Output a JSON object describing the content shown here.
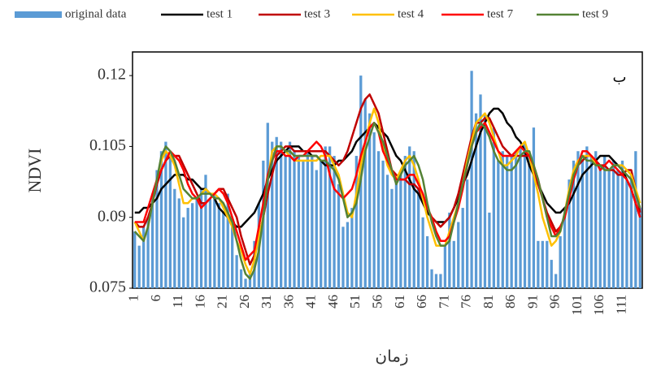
{
  "chart_data": {
    "type": "bar_line",
    "y_label": "NDVI",
    "x_label": "زمان",
    "annotation": "ب",
    "legend": "top",
    "grid": false,
    "categories": [
      "1",
      null,
      null,
      null,
      null,
      "6",
      null,
      null,
      null,
      null,
      "11",
      null,
      null,
      null,
      null,
      "16",
      null,
      null,
      null,
      null,
      "21",
      null,
      null,
      null,
      null,
      "26",
      null,
      null,
      null,
      null,
      "31",
      null,
      null,
      null,
      null,
      "36",
      null,
      null,
      null,
      null,
      "41",
      null,
      null,
      null,
      null,
      "46",
      null,
      null,
      null,
      null,
      "51",
      null,
      null,
      null,
      null,
      "56",
      null,
      null,
      null,
      null,
      "61",
      null,
      null,
      null,
      null,
      "66",
      null,
      null,
      null,
      null,
      "71",
      null,
      null,
      null,
      null,
      "76",
      null,
      null,
      null,
      null,
      "81",
      null,
      null,
      null,
      null,
      "86",
      null,
      null,
      null,
      null,
      "91",
      null,
      null,
      null,
      null,
      "96",
      null,
      null,
      null,
      null,
      "101",
      null,
      null,
      null,
      null,
      "106",
      null,
      null,
      null,
      null,
      "111",
      null,
      null,
      null,
      null
    ],
    "ylim": [
      0.075,
      0.125
    ],
    "yticks": [
      0.075,
      0.09,
      0.105,
      0.12
    ],
    "series": [
      {
        "name": "original data",
        "type": "bar",
        "color": "#5b9bd5",
        "values": [
          0.087,
          0.084,
          0.088,
          0.09,
          0.095,
          0.1,
          0.104,
          0.106,
          0.103,
          0.096,
          0.094,
          0.09,
          0.092,
          0.093,
          0.094,
          0.096,
          0.099,
          0.094,
          0.095,
          0.093,
          0.091,
          0.095,
          0.088,
          0.082,
          0.079,
          0.077,
          0.078,
          0.085,
          0.093,
          0.102,
          0.11,
          0.106,
          0.107,
          0.106,
          0.103,
          0.106,
          0.104,
          0.103,
          0.102,
          0.104,
          0.103,
          0.1,
          0.102,
          0.105,
          0.105,
          0.103,
          0.097,
          0.088,
          0.089,
          0.092,
          0.103,
          0.12,
          0.115,
          0.112,
          0.108,
          0.104,
          0.102,
          0.099,
          0.096,
          0.098,
          0.099,
          0.103,
          0.105,
          0.104,
          0.096,
          0.09,
          0.086,
          0.079,
          0.078,
          0.078,
          0.084,
          0.091,
          0.085,
          0.089,
          0.092,
          0.098,
          0.121,
          0.112,
          0.116,
          0.112,
          0.091,
          0.109,
          0.102,
          0.104,
          0.103,
          0.103,
          0.104,
          0.105,
          0.106,
          0.104,
          0.109,
          0.085,
          0.085,
          0.085,
          0.081,
          0.078,
          0.086,
          0.092,
          0.098,
          0.102,
          0.104,
          0.102,
          0.105,
          0.103,
          0.104,
          0.101,
          0.103,
          0.1,
          0.102,
          0.1,
          0.102,
          0.098,
          0.099,
          0.104,
          0.092
        ]
      },
      {
        "name": "test 1",
        "type": "line",
        "color": "#000000",
        "values": [
          0.091,
          0.091,
          0.092,
          0.092,
          0.093,
          0.094,
          0.096,
          0.097,
          0.098,
          0.099,
          0.099,
          0.099,
          0.098,
          0.098,
          0.097,
          0.096,
          0.096,
          0.095,
          0.094,
          0.092,
          0.091,
          0.09,
          0.089,
          0.088,
          0.088,
          0.089,
          0.09,
          0.091,
          0.093,
          0.095,
          0.098,
          0.1,
          0.102,
          0.103,
          0.104,
          0.105,
          0.105,
          0.105,
          0.104,
          0.104,
          0.103,
          0.103,
          0.102,
          0.101,
          0.101,
          0.101,
          0.102,
          0.102,
          0.103,
          0.104,
          0.106,
          0.107,
          0.108,
          0.109,
          0.11,
          0.109,
          0.108,
          0.107,
          0.105,
          0.103,
          0.102,
          0.1,
          0.098,
          0.096,
          0.095,
          0.093,
          0.091,
          0.09,
          0.089,
          0.089,
          0.089,
          0.09,
          0.092,
          0.094,
          0.097,
          0.099,
          0.102,
          0.105,
          0.108,
          0.11,
          0.112,
          0.113,
          0.113,
          0.112,
          0.11,
          0.109,
          0.107,
          0.106,
          0.104,
          0.101,
          0.099,
          0.097,
          0.095,
          0.093,
          0.092,
          0.091,
          0.091,
          0.092,
          0.093,
          0.095,
          0.097,
          0.099,
          0.1,
          0.101,
          0.102,
          0.103,
          0.103,
          0.103,
          0.102,
          0.101,
          0.1,
          0.098,
          0.096,
          0.093,
          0.09
        ]
      },
      {
        "name": "test 3",
        "type": "line",
        "color": "#c00000",
        "values": [
          0.089,
          0.088,
          0.088,
          0.09,
          0.093,
          0.097,
          0.1,
          0.102,
          0.103,
          0.103,
          0.103,
          0.101,
          0.099,
          0.097,
          0.095,
          0.093,
          0.093,
          0.094,
          0.095,
          0.096,
          0.096,
          0.094,
          0.092,
          0.09,
          0.086,
          0.083,
          0.08,
          0.082,
          0.086,
          0.09,
          0.095,
          0.099,
          0.103,
          0.104,
          0.105,
          0.105,
          0.104,
          0.104,
          0.104,
          0.104,
          0.104,
          0.104,
          0.104,
          0.104,
          0.103,
          0.102,
          0.101,
          0.102,
          0.104,
          0.107,
          0.11,
          0.113,
          0.115,
          0.116,
          0.114,
          0.112,
          0.108,
          0.104,
          0.1,
          0.099,
          0.098,
          0.098,
          0.097,
          0.097,
          0.096,
          0.094,
          0.092,
          0.09,
          0.089,
          0.088,
          0.089,
          0.09,
          0.092,
          0.095,
          0.099,
          0.103,
          0.107,
          0.11,
          0.11,
          0.111,
          0.111,
          0.109,
          0.107,
          0.105,
          0.104,
          0.103,
          0.103,
          0.103,
          0.103,
          0.103,
          0.1,
          0.097,
          0.094,
          0.091,
          0.089,
          0.087,
          0.088,
          0.09,
          0.094,
          0.098,
          0.101,
          0.102,
          0.103,
          0.103,
          0.102,
          0.101,
          0.101,
          0.1,
          0.1,
          0.099,
          0.099,
          0.1,
          0.1,
          0.096,
          0.091
        ]
      },
      {
        "name": "test 4",
        "type": "line",
        "color": "#ffc000",
        "values": [
          0.089,
          0.087,
          0.085,
          0.088,
          0.093,
          0.098,
          0.102,
          0.104,
          0.103,
          0.101,
          0.097,
          0.093,
          0.093,
          0.094,
          0.094,
          0.095,
          0.096,
          0.095,
          0.095,
          0.094,
          0.092,
          0.09,
          0.088,
          0.085,
          0.083,
          0.08,
          0.078,
          0.081,
          0.086,
          0.09,
          0.098,
          0.104,
          0.105,
          0.105,
          0.104,
          0.103,
          0.102,
          0.102,
          0.102,
          0.102,
          0.102,
          0.102,
          0.103,
          0.103,
          0.103,
          0.101,
          0.099,
          0.095,
          0.091,
          0.09,
          0.095,
          0.101,
          0.106,
          0.11,
          0.113,
          0.11,
          0.105,
          0.101,
          0.099,
          0.098,
          0.1,
          0.102,
          0.103,
          0.101,
          0.098,
          0.094,
          0.09,
          0.087,
          0.084,
          0.084,
          0.084,
          0.087,
          0.09,
          0.093,
          0.097,
          0.102,
          0.106,
          0.11,
          0.111,
          0.112,
          0.11,
          0.107,
          0.104,
          0.101,
          0.101,
          0.102,
          0.103,
          0.105,
          0.106,
          0.103,
          0.099,
          0.095,
          0.09,
          0.087,
          0.084,
          0.085,
          0.087,
          0.091,
          0.096,
          0.1,
          0.102,
          0.103,
          0.103,
          0.103,
          0.101,
          0.101,
          0.1,
          0.1,
          0.101,
          0.101,
          0.101,
          0.1,
          0.099,
          0.096,
          0.093
        ]
      },
      {
        "name": "test 7",
        "type": "line",
        "color": "#ff0000",
        "values": [
          0.089,
          0.089,
          0.089,
          0.092,
          0.095,
          0.098,
          0.1,
          0.102,
          0.104,
          0.103,
          0.102,
          0.1,
          0.097,
          0.095,
          0.094,
          0.092,
          0.093,
          0.094,
          0.095,
          0.096,
          0.095,
          0.093,
          0.09,
          0.087,
          0.084,
          0.081,
          0.082,
          0.083,
          0.088,
          0.093,
          0.099,
          0.102,
          0.104,
          0.104,
          0.103,
          0.103,
          0.102,
          0.103,
          0.103,
          0.104,
          0.105,
          0.106,
          0.105,
          0.103,
          0.099,
          0.096,
          0.095,
          0.094,
          0.095,
          0.096,
          0.099,
          0.103,
          0.106,
          0.109,
          0.11,
          0.108,
          0.104,
          0.102,
          0.1,
          0.098,
          0.098,
          0.098,
          0.099,
          0.099,
          0.097,
          0.095,
          0.092,
          0.09,
          0.087,
          0.085,
          0.085,
          0.086,
          0.089,
          0.092,
          0.096,
          0.101,
          0.105,
          0.108,
          0.109,
          0.11,
          0.108,
          0.106,
          0.104,
          0.103,
          0.103,
          0.103,
          0.104,
          0.105,
          0.104,
          0.103,
          0.101,
          0.098,
          0.094,
          0.09,
          0.088,
          0.086,
          0.088,
          0.09,
          0.094,
          0.098,
          0.101,
          0.104,
          0.104,
          0.103,
          0.102,
          0.1,
          0.101,
          0.102,
          0.101,
          0.1,
          0.099,
          0.098,
          0.096,
          0.093,
          0.09
        ]
      },
      {
        "name": "test 9",
        "type": "line",
        "color": "#548235",
        "values": [
          0.087,
          0.086,
          0.085,
          0.088,
          0.093,
          0.098,
          0.103,
          0.105,
          0.104,
          0.102,
          0.099,
          0.096,
          0.095,
          0.094,
          0.094,
          0.095,
          0.095,
          0.095,
          0.094,
          0.094,
          0.093,
          0.091,
          0.089,
          0.085,
          0.081,
          0.078,
          0.077,
          0.079,
          0.083,
          0.09,
          0.098,
          0.102,
          0.105,
          0.105,
          0.104,
          0.104,
          0.103,
          0.103,
          0.103,
          0.103,
          0.103,
          0.103,
          0.102,
          0.102,
          0.101,
          0.1,
          0.098,
          0.094,
          0.09,
          0.091,
          0.093,
          0.098,
          0.104,
          0.107,
          0.11,
          0.108,
          0.106,
          0.103,
          0.1,
          0.097,
          0.099,
          0.101,
          0.102,
          0.103,
          0.101,
          0.098,
          0.093,
          0.089,
          0.086,
          0.084,
          0.084,
          0.085,
          0.089,
          0.093,
          0.097,
          0.101,
          0.105,
          0.108,
          0.11,
          0.109,
          0.107,
          0.104,
          0.102,
          0.101,
          0.1,
          0.1,
          0.101,
          0.103,
          0.104,
          0.104,
          0.101,
          0.098,
          0.094,
          0.09,
          0.086,
          0.086,
          0.087,
          0.091,
          0.095,
          0.099,
          0.101,
          0.103,
          0.102,
          0.102,
          0.101,
          0.101,
          0.1,
          0.1,
          0.101,
          0.101,
          0.1,
          0.099,
          0.098,
          0.095,
          0.092
        ]
      }
    ]
  }
}
